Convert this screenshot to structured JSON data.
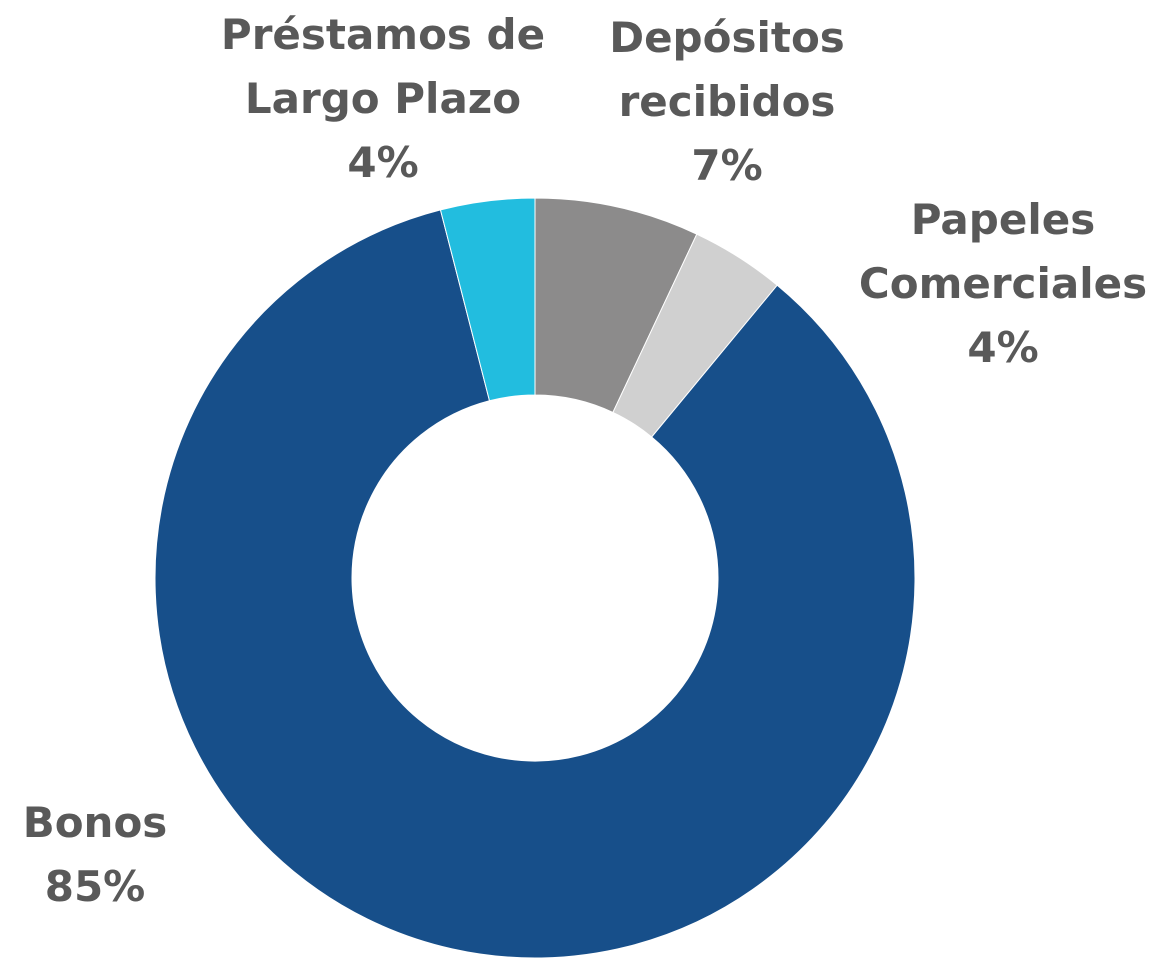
{
  "chart_data": {
    "type": "donut",
    "categories": [
      "Depósitos recibidos",
      "Papeles Comerciales",
      "Bonos",
      "Préstamos de Largo Plazo"
    ],
    "values": [
      7,
      4,
      85,
      4
    ],
    "value_labels": [
      "7%",
      "4%",
      "85%",
      "4%"
    ],
    "colors": [
      "#8c8b8b",
      "#d0d0d0",
      "#174f8a",
      "#22bddf"
    ]
  }
}
